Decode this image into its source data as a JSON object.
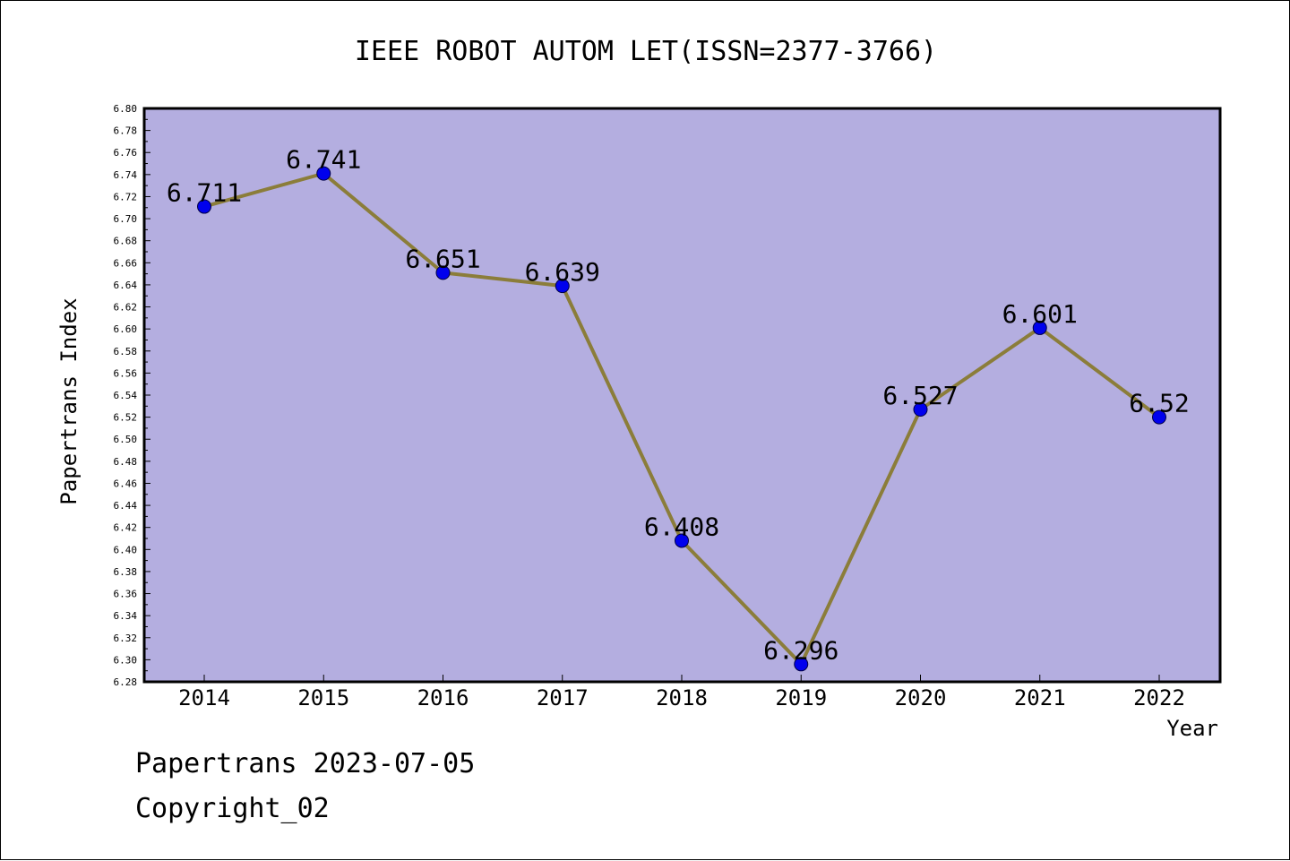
{
  "chart_data": {
    "type": "line",
    "title": "IEEE ROBOT AUTOM LET(ISSN=2377-3766)",
    "xlabel": "Year",
    "ylabel": "Papertrans Index",
    "categories": [
      "2014",
      "2015",
      "2016",
      "2017",
      "2018",
      "2019",
      "2020",
      "2021",
      "2022"
    ],
    "series": [
      {
        "values": [
          6.711,
          6.741,
          6.651,
          6.639,
          6.408,
          6.296,
          6.527,
          6.601,
          6.52
        ],
        "labels": [
          "6.711",
          "6.741",
          "6.651",
          "6.639",
          "6.408",
          "6.296",
          "6.527",
          "6.601",
          "6.52"
        ]
      }
    ],
    "ylim": [
      6.28,
      6.8
    ],
    "ytick_step": 0.02,
    "grid": false,
    "legend": "none",
    "colors": {
      "plot_background": "#b4aee0",
      "line": "#8b7d3a",
      "marker": "#0000ee",
      "axis": "#000000"
    }
  },
  "footer": {
    "line1": "Papertrans 2023-07-05",
    "line2": "Copyright_02"
  }
}
